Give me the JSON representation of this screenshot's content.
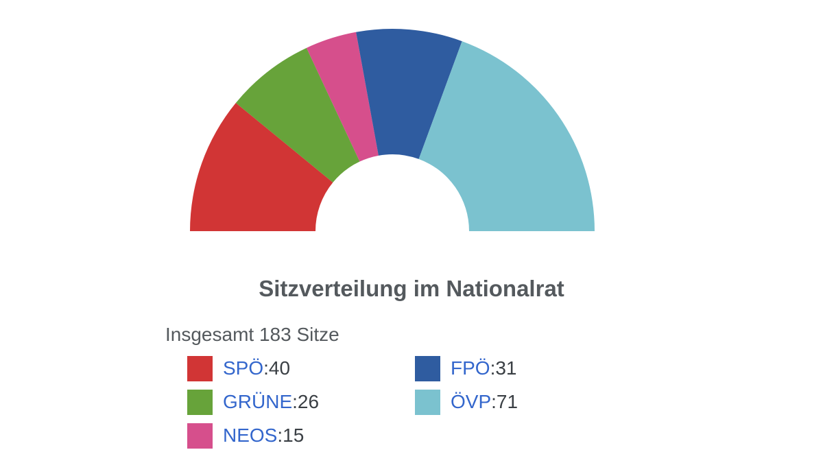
{
  "chart_data": {
    "type": "parliament",
    "title": "Sitzverteilung im Nationalrat",
    "subtitle": "Insgesamt 183 Sitze",
    "total": 183,
    "series": [
      {
        "name": "SPÖ",
        "value": 40,
        "color": "#d13535"
      },
      {
        "name": "GRÜNE",
        "value": 26,
        "color": "#67a33a"
      },
      {
        "name": "NEOS",
        "value": 15,
        "color": "#d64f8c"
      },
      {
        "name": "FPÖ",
        "value": 31,
        "color": "#2f5ca0"
      },
      {
        "name": "ÖVP",
        "value": 71,
        "color": "#7bc2cf"
      }
    ]
  },
  "legend": {
    "separator": ": "
  }
}
